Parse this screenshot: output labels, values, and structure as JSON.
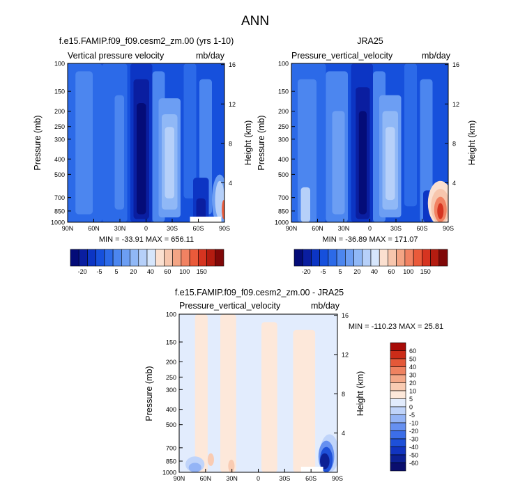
{
  "figure_title": "ANN",
  "colors": {
    "level_colors": [
      "#040c78",
      "#0a1ea0",
      "#0c35c4",
      "#1650dc",
      "#2c6ae8",
      "#4c86ef",
      "#6c9ef3",
      "#90b8f6",
      "#b6d0f9",
      "#d6e6fc",
      "#fbe0d0",
      "#f7c6ad",
      "#f4a585",
      "#f18262",
      "#ea5a3a",
      "#d63420",
      "#b41c10",
      "#800808"
    ],
    "diff_colors": [
      "#0a0e6e",
      "#0c2094",
      "#1134c0",
      "#1e50d8",
      "#3c6ee8",
      "#6690f0",
      "#94b4f6",
      "#c0d4fa",
      "#e2ecfd",
      "#fde8da",
      "#f9cbb2",
      "#f4a888",
      "#ef8260",
      "#e45838",
      "#cc2c18",
      "#a80c08"
    ]
  },
  "chart_data": [
    {
      "type": "heatmap",
      "title": "f.e15.FAMIP.f09_f09.cesm2_zm.00 (yrs 1-10)",
      "left_label": "Vertical pressure velocity",
      "right_label": "mb/day",
      "ylabel": "Pressure (mb)",
      "ylabel_right": "Height (km)",
      "x_ticks": [
        "90N",
        "60N",
        "30N",
        "0",
        "30S",
        "60S",
        "90S"
      ],
      "x_values": [
        90,
        60,
        30,
        0,
        -30,
        -60,
        -90
      ],
      "y_ticks": [
        "100",
        "150",
        "200",
        "250",
        "300",
        "400",
        "500",
        "700",
        "850",
        "1000"
      ],
      "y_values": [
        100,
        150,
        200,
        250,
        300,
        400,
        500,
        700,
        850,
        1000
      ],
      "y_log": true,
      "right_ticks": [
        "16",
        "12",
        "8",
        "4"
      ],
      "right_values": [
        16,
        12,
        8,
        4
      ],
      "xlim": [
        90,
        -90
      ],
      "ylim": [
        100,
        1000
      ],
      "min_max": "MIN = -33.91   MAX = 656.11",
      "colorbar": {
        "orientation": "horizontal",
        "labels": [
          "-20",
          "-5",
          "5",
          "20",
          "40",
          "60",
          "100",
          "150"
        ],
        "levels": [
          -30,
          -25,
          -20,
          -15,
          -10,
          -5,
          0,
          5,
          10,
          15,
          20,
          30,
          40,
          50,
          60,
          80,
          100,
          150
        ]
      }
    },
    {
      "type": "heatmap",
      "title": "JRA25",
      "left_label": "Pressure_vertical_velocity",
      "right_label": "mb/day",
      "ylabel": "Pressure (mb)",
      "ylabel_right": "Height (km)",
      "x_ticks": [
        "90N",
        "60N",
        "30N",
        "0",
        "30S",
        "60S",
        "90S"
      ],
      "x_values": [
        90,
        60,
        30,
        0,
        -30,
        -60,
        -90
      ],
      "y_ticks": [
        "100",
        "150",
        "200",
        "250",
        "300",
        "400",
        "500",
        "700",
        "850",
        "1000"
      ],
      "y_values": [
        100,
        150,
        200,
        250,
        300,
        400,
        500,
        700,
        850,
        1000
      ],
      "y_log": true,
      "right_ticks": [
        "16",
        "12",
        "8",
        "4"
      ],
      "right_values": [
        16,
        12,
        8,
        4
      ],
      "xlim": [
        90,
        -90
      ],
      "ylim": [
        100,
        1000
      ],
      "min_max": "MIN = -36.89   MAX = 171.07",
      "colorbar": {
        "orientation": "horizontal",
        "labels": [
          "-20",
          "-5",
          "5",
          "20",
          "40",
          "60",
          "100",
          "150"
        ],
        "levels": [
          -30,
          -25,
          -20,
          -15,
          -10,
          -5,
          0,
          5,
          10,
          15,
          20,
          30,
          40,
          50,
          60,
          80,
          100,
          150
        ]
      }
    },
    {
      "type": "heatmap",
      "title": "f.e15.FAMIP.f09_f09.cesm2_zm.00 - JRA25",
      "left_label": "Pressure_vertical_velocity",
      "right_label": "mb/day",
      "ylabel": "Pressure (mb)",
      "ylabel_right": "Height (km)",
      "x_ticks": [
        "90N",
        "60N",
        "30N",
        "0",
        "30S",
        "60S",
        "90S"
      ],
      "x_values": [
        90,
        60,
        30,
        0,
        -30,
        -60,
        -90
      ],
      "y_ticks": [
        "100",
        "150",
        "200",
        "250",
        "300",
        "400",
        "500",
        "700",
        "850",
        "1000"
      ],
      "y_values": [
        100,
        150,
        200,
        250,
        300,
        400,
        500,
        700,
        850,
        1000
      ],
      "y_log": true,
      "right_ticks": [
        "16",
        "12",
        "8",
        "4"
      ],
      "right_values": [
        16,
        12,
        8,
        4
      ],
      "xlim": [
        90,
        -90
      ],
      "ylim": [
        100,
        1000
      ],
      "min_max": "MIN = -110.23   MAX =  25.81",
      "colorbar": {
        "orientation": "vertical",
        "labels": [
          "60",
          "50",
          "40",
          "30",
          "20",
          "10",
          "5",
          "0",
          "-5",
          "-10",
          "-20",
          "-30",
          "-40",
          "-50",
          "-60"
        ],
        "levels": [
          -70,
          -60,
          -50,
          -40,
          -30,
          -20,
          -10,
          -5,
          0,
          5,
          10,
          20,
          30,
          40,
          50,
          60,
          70
        ]
      }
    }
  ]
}
